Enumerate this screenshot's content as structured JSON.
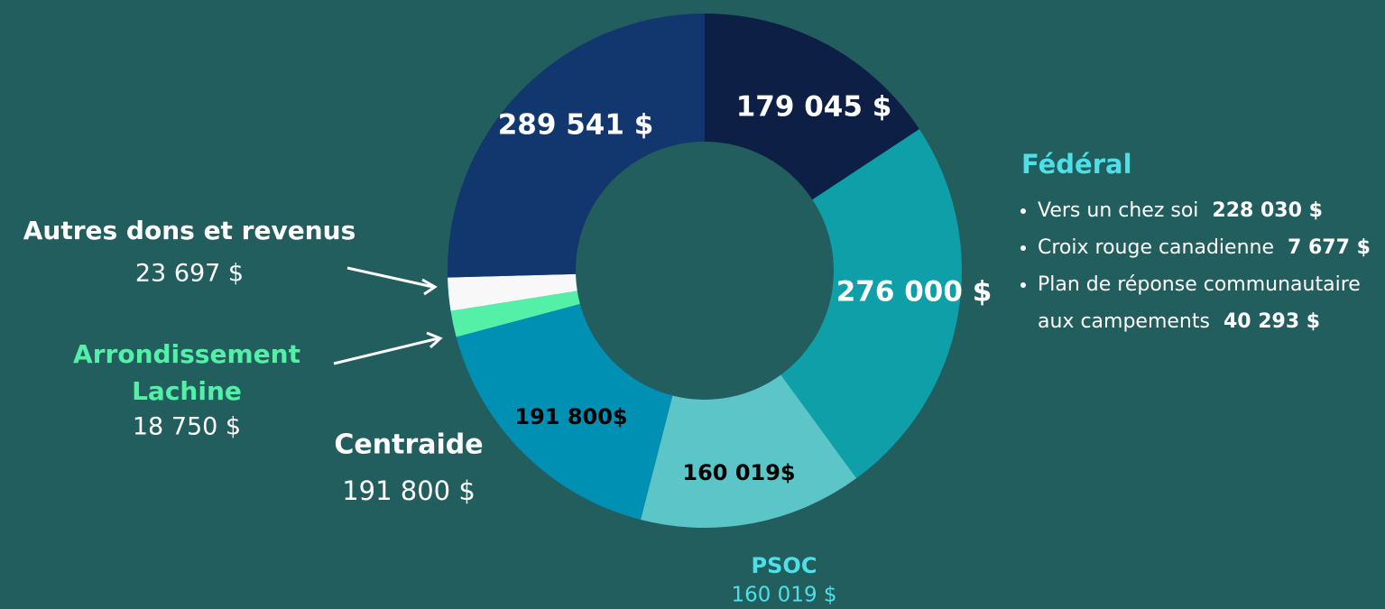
{
  "chart_data": {
    "type": "donut",
    "categories": [
      null,
      "Fédéral",
      "PSOC",
      "Centraide",
      "Arrondissement Lachine",
      "Autres dons et revenus",
      null
    ],
    "values": [
      179045,
      276000,
      160019,
      191800,
      18750,
      23697,
      289541
    ],
    "value_labels": [
      "179 045 $",
      "276 000 $",
      "160 019$",
      "191 800$",
      null,
      null,
      "289 541 $"
    ],
    "callout_labels": [
      null,
      null,
      "160 019 $",
      "191 800 $",
      "18 750 $",
      "23 697 $",
      null
    ],
    "colors": [
      "#0d1f45",
      "#0e9fa8",
      "#5bc5c8",
      "#0090b4",
      "#55f0a8",
      "#f8f8f8",
      "#12376e"
    ],
    "federal_items": [
      {
        "text": "Vers un chez soi",
        "amount": "228 030 $"
      },
      {
        "text": "Croix rouge canadienne",
        "amount": "7 677 $"
      },
      {
        "text": "Plan de réponse communautaire aux campements",
        "amount": "40 293 $"
      }
    ]
  }
}
